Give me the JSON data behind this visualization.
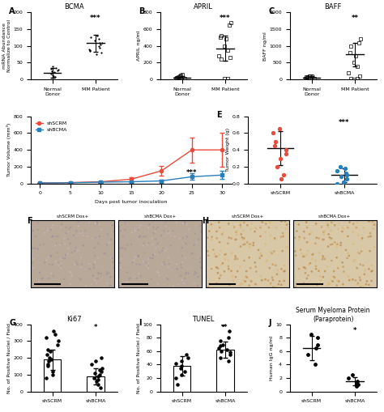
{
  "panel_A": {
    "title": "BCMA",
    "ylabel": "mRNA Abundance\nNormalize to Control",
    "categories": [
      "Normal Donor",
      "MM Patient"
    ],
    "scatter_nd": [
      5,
      8,
      10,
      12,
      18,
      22,
      25,
      28,
      30,
      32,
      35,
      38
    ],
    "scatter_mm": [
      75,
      80,
      85,
      88,
      90,
      95,
      100,
      105,
      108,
      110,
      115,
      120,
      125,
      130
    ],
    "mean_nd": 20,
    "mean_mm": 108,
    "err_nd": 15,
    "err_mm": 25,
    "ylim": [
      0,
      200
    ],
    "yticks": [
      0,
      50,
      100,
      150,
      200
    ],
    "sig": "***"
  },
  "panel_B": {
    "title": "APRIL",
    "ylabel": "APRIL ng/ml",
    "categories": [
      "Normal Donor",
      "MM Patient"
    ],
    "scatter_nd": [
      5,
      8,
      10,
      15,
      20,
      25,
      30,
      40,
      50,
      60
    ],
    "scatter_mm": [
      10,
      15,
      240,
      260,
      280,
      350,
      400,
      480,
      500,
      520,
      650,
      680
    ],
    "mean_nd": 20,
    "mean_mm": 370,
    "err_nd": 20,
    "err_mm": 150,
    "ylim": [
      0,
      800
    ],
    "yticks": [
      0,
      200,
      400,
      600,
      800
    ],
    "sig": "***"
  },
  "panel_C": {
    "title": "BAFF",
    "ylabel": "BAFF ng/ml",
    "categories": [
      "Normal Donor",
      "MM Patient"
    ],
    "scatter_nd": [
      20,
      30,
      40,
      50,
      60,
      70,
      80,
      90,
      100,
      110
    ],
    "scatter_mm": [
      10,
      20,
      30,
      100,
      200,
      400,
      500,
      700,
      800,
      1000,
      1100,
      1200
    ],
    "mean_nd": 60,
    "mean_mm": 750,
    "err_nd": 50,
    "err_mm": 350,
    "ylim": [
      0,
      2000
    ],
    "yticks": [
      0,
      500,
      1000,
      1500,
      2000
    ],
    "sig": "**"
  },
  "panel_D": {
    "title": "",
    "xlabel": "Days post tumor inoculation",
    "ylabel": "Tumor Volume (mm³)",
    "days": [
      0,
      5,
      10,
      15,
      20,
      25,
      30
    ],
    "shSCRM_mean": [
      5,
      10,
      20,
      50,
      150,
      400,
      400
    ],
    "shSCRM_err": [
      2,
      5,
      10,
      20,
      60,
      150,
      200
    ],
    "shBCMA_mean": [
      5,
      8,
      15,
      20,
      30,
      80,
      100
    ],
    "shBCMA_err": [
      2,
      3,
      5,
      8,
      15,
      40,
      50
    ],
    "ylim": [
      0,
      800
    ],
    "yticks": [
      0,
      200,
      400,
      600,
      800
    ],
    "sig": "***",
    "color_scrm": "#e74c3c",
    "color_bcma": "#2980b9"
  },
  "panel_E": {
    "title": "",
    "ylabel": "Tumor Weight (g)",
    "categories": [
      "shSCRM",
      "shBCMA"
    ],
    "scatter_scrm": [
      0.05,
      0.1,
      0.2,
      0.3,
      0.35,
      0.4,
      0.45,
      0.5,
      0.6,
      0.65
    ],
    "scatter_bcma": [
      0.0,
      0.02,
      0.05,
      0.08,
      0.1,
      0.12,
      0.15,
      0.18,
      0.2
    ],
    "mean_scrm": 0.42,
    "mean_bcma": 0.1,
    "err_scrm": 0.2,
    "err_bcma": 0.08,
    "ylim": [
      0,
      0.8
    ],
    "yticks": [
      0.0,
      0.2,
      0.4,
      0.6,
      0.8
    ],
    "sig": "***",
    "color_scrm": "#e74c3c",
    "color_bcma": "#2980b9"
  },
  "panel_G": {
    "title": "Ki67",
    "ylabel": "No. of Positive Nuclei / Field",
    "categories": [
      "shSCRM",
      "shBCMA"
    ],
    "bar_scrm": 190,
    "bar_bcma": 90,
    "scatter_scrm": [
      80,
      100,
      120,
      150,
      160,
      180,
      190,
      200,
      220,
      240,
      250,
      280,
      300,
      320,
      340,
      360
    ],
    "scatter_bcma": [
      20,
      40,
      60,
      70,
      80,
      90,
      100,
      110,
      120,
      130,
      140,
      160,
      180,
      200
    ],
    "err_scrm": 60,
    "err_bcma": 50,
    "ylim": [
      0,
      400
    ],
    "yticks": [
      0,
      100,
      200,
      300,
      400
    ],
    "sig": "*"
  },
  "panel_I": {
    "title": "TUNEL",
    "ylabel": "No. of Positive Nuclei / Field",
    "categories": [
      "shSCRM",
      "shBCMA"
    ],
    "bar_scrm": 38,
    "bar_bcma": 62,
    "scatter_scrm": [
      10,
      20,
      25,
      30,
      35,
      38,
      42,
      45,
      50,
      55
    ],
    "scatter_bcma": [
      45,
      50,
      55,
      58,
      60,
      62,
      65,
      68,
      70,
      75,
      80,
      90,
      100
    ],
    "err_scrm": 15,
    "err_bcma": 12,
    "ylim": [
      0,
      100
    ],
    "yticks": [
      0,
      20,
      40,
      60,
      80,
      100
    ],
    "sig": "*"
  },
  "panel_J": {
    "title": "Serum Myeloma Protein\n(Paraprotein)",
    "ylabel": "Human IgG ng/ml",
    "categories": [
      "shSCRM",
      "shBCMA"
    ],
    "scatter_scrm": [
      4.0,
      5.5,
      6.5,
      7.0,
      8.0,
      8.5
    ],
    "scatter_bcma": [
      0.8,
      1.0,
      1.2,
      1.5,
      2.0,
      2.5
    ],
    "mean_scrm": 6.5,
    "mean_bcma": 1.5,
    "err_scrm": 1.8,
    "err_bcma": 0.6,
    "ylim": [
      0,
      10
    ],
    "yticks": [
      0,
      2,
      4,
      6,
      8,
      10
    ],
    "sig": "*"
  },
  "img_placeholder_color": "#c8b89a",
  "img_placeholder_color2": "#d4a96a"
}
